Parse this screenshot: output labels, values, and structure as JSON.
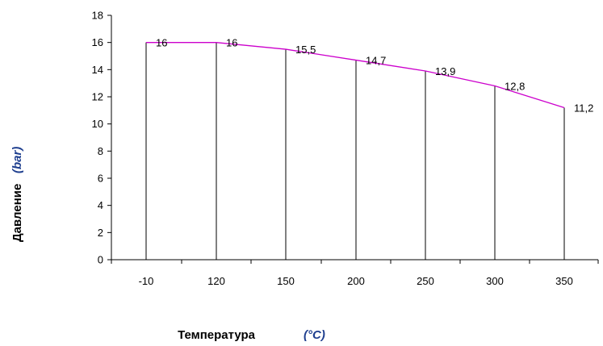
{
  "chart_data": {
    "type": "line",
    "categories": [
      "-10",
      "120",
      "150",
      "200",
      "250",
      "300",
      "350"
    ],
    "values": [
      16,
      16,
      15.5,
      14.7,
      13.9,
      12.8,
      11.2
    ],
    "data_labels": [
      "16",
      "16",
      "15,5",
      "14,7",
      "13,9",
      "12,8",
      "11,2"
    ],
    "ylim": [
      0,
      18
    ],
    "yticks": [
      0,
      2,
      4,
      6,
      8,
      10,
      12,
      14,
      16,
      18
    ],
    "xlabel": "Температура",
    "xlabel_unit": "(°C)",
    "ylabel": "Давление",
    "ylabel_unit": "(bar)",
    "line_color": "#cc00cc",
    "unit_color": "#1f3f8f",
    "grid": false,
    "drop_lines": true
  }
}
